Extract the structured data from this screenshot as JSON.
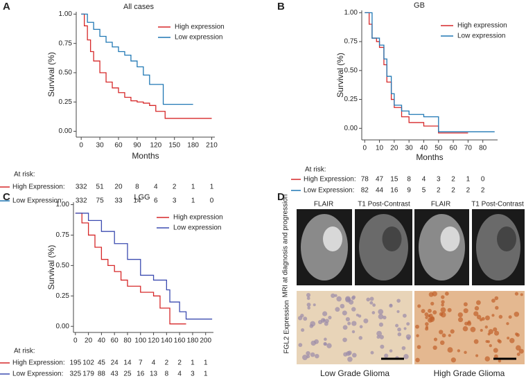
{
  "chart_data": [
    {
      "type": "line",
      "step": true,
      "panel": "A",
      "title": "All cases",
      "x_label": "Months",
      "y_label": "Survival (%)",
      "xlim": [
        -8,
        215
      ],
      "ylim": [
        -0.05,
        1.02
      ],
      "xticks": [
        0,
        30,
        60,
        90,
        120,
        150,
        180,
        210
      ],
      "yticks": [
        {
          "value": 0,
          "label": "0.00"
        },
        {
          "value": 0.25,
          "label": "0.25"
        },
        {
          "value": 0.5,
          "label": "0.50"
        },
        {
          "value": 0.75,
          "label": "0.75"
        },
        {
          "value": 1,
          "label": "1.00"
        }
      ],
      "legend": "upper right",
      "series": [
        {
          "name": "High expression",
          "color": "#d62728",
          "x": [
            0,
            5,
            10,
            15,
            20,
            30,
            40,
            50,
            60,
            70,
            80,
            90,
            100,
            110,
            120,
            135,
            210
          ],
          "values": [
            1,
            0.9,
            0.78,
            0.68,
            0.6,
            0.5,
            0.42,
            0.37,
            0.33,
            0.29,
            0.26,
            0.25,
            0.24,
            0.22,
            0.17,
            0.11,
            0.11
          ]
        },
        {
          "name": "Low expression",
          "color": "#1f77b4",
          "x": [
            0,
            10,
            20,
            30,
            40,
            50,
            60,
            70,
            80,
            90,
            100,
            110,
            120,
            132,
            180
          ],
          "values": [
            1,
            0.93,
            0.87,
            0.81,
            0.76,
            0.72,
            0.68,
            0.65,
            0.6,
            0.55,
            0.48,
            0.4,
            0.4,
            0.23,
            0.23
          ]
        }
      ],
      "risk_table": {
        "label": "At risk:",
        "rows": [
          {
            "name": "High Expression:",
            "values": [
              332,
              51,
              20,
              8,
              4,
              2,
              1,
              1
            ]
          },
          {
            "name": "Low  Expression:",
            "values": [
              332,
              75,
              33,
              14,
              6,
              3,
              1,
              0
            ]
          }
        ]
      }
    },
    {
      "type": "line",
      "step": true,
      "panel": "B",
      "title": "GB",
      "x_label": "Months",
      "y_label": "Survival (%)",
      "xlim": [
        -2,
        90
      ],
      "ylim": [
        -0.1,
        1.02
      ],
      "xticks": [
        0,
        10,
        20,
        30,
        40,
        50,
        60,
        70,
        80
      ],
      "yticks": [
        {
          "value": 0,
          "label": "0.00"
        },
        {
          "value": 0.25,
          "label": "0.25"
        },
        {
          "value": 0.5,
          "label": "0.50"
        },
        {
          "value": 0.75,
          "label": "0.75"
        },
        {
          "value": 1,
          "label": "1.00"
        }
      ],
      "legend": "upper right",
      "series": [
        {
          "name": "High expression",
          "color": "#d62728",
          "x": [
            0,
            3,
            5,
            8,
            10,
            13,
            15,
            18,
            20,
            25,
            30,
            40,
            50,
            70
          ],
          "values": [
            1,
            0.9,
            0.78,
            0.75,
            0.7,
            0.55,
            0.4,
            0.25,
            0.18,
            0.1,
            0.05,
            0.02,
            -0.04,
            -0.04
          ]
        },
        {
          "name": "Low expression",
          "color": "#1f77b4",
          "x": [
            0,
            5,
            10,
            13,
            15,
            18,
            20,
            25,
            30,
            40,
            48,
            50,
            88
          ],
          "values": [
            1,
            0.78,
            0.72,
            0.6,
            0.45,
            0.3,
            0.2,
            0.15,
            0.12,
            0.1,
            0.1,
            -0.03,
            -0.03
          ]
        }
      ],
      "risk_table": {
        "label": "At risk:",
        "rows": [
          {
            "name": "High Expression:",
            "values": [
              78,
              47,
              15,
              8,
              4,
              3,
              2,
              1,
              0
            ]
          },
          {
            "name": "Low  Expression:",
            "values": [
              82,
              44,
              16,
              9,
              5,
              2,
              2,
              2,
              2
            ]
          }
        ]
      }
    },
    {
      "type": "line",
      "step": true,
      "panel": "C",
      "title": "LGG",
      "y_label": "Survival (%)",
      "xlim": [
        -3,
        212
      ],
      "ylim": [
        -0.05,
        1.02
      ],
      "xticks": [
        0,
        20,
        40,
        60,
        80,
        100,
        120,
        140,
        160,
        180,
        200
      ],
      "yticks": [
        {
          "value": 0,
          "label": "0.00"
        },
        {
          "value": 0.25,
          "label": "0.25"
        },
        {
          "value": 0.5,
          "label": "0.50"
        },
        {
          "value": 0.75,
          "label": "0.75"
        },
        {
          "value": 1,
          "label": "1.00"
        }
      ],
      "legend": "upper right",
      "series": [
        {
          "name": "High expression",
          "color": "#d62728",
          "x": [
            0,
            10,
            20,
            30,
            40,
            50,
            60,
            70,
            80,
            100,
            120,
            130,
            145,
            170
          ],
          "values": [
            0.93,
            0.85,
            0.75,
            0.65,
            0.55,
            0.5,
            0.45,
            0.38,
            0.33,
            0.28,
            0.25,
            0.15,
            0.02,
            0.02
          ]
        },
        {
          "name": "Low expression",
          "color": "#3b4bb0",
          "x": [
            0,
            20,
            40,
            60,
            80,
            100,
            120,
            140,
            145,
            160,
            170,
            210
          ],
          "values": [
            0.93,
            0.87,
            0.78,
            0.68,
            0.55,
            0.42,
            0.38,
            0.3,
            0.2,
            0.12,
            0.06,
            0.06
          ]
        }
      ],
      "risk_table": {
        "label": "At risk:",
        "rows": [
          {
            "name": "High Expression:",
            "values": [
              195,
              102,
              45,
              24,
              14,
              7,
              4,
              2,
              2,
              1,
              1
            ]
          },
          {
            "name": "Low  Expression:",
            "values": [
              325,
              179,
              88,
              43,
              25,
              16,
              13,
              8,
              4,
              3,
              1
            ]
          }
        ]
      }
    }
  ],
  "panel_d": {
    "panel": "D",
    "mri_label": "MRI at diagnosis and progression",
    "ihc_label": "FGL2 Expression",
    "image_titles": [
      "FLAIR",
      "T1 Post-Contrast",
      "FLAIR",
      "T1 Post-Contrast"
    ],
    "groups": [
      "Low Grade Glioma",
      "High Grade Glioma"
    ]
  }
}
